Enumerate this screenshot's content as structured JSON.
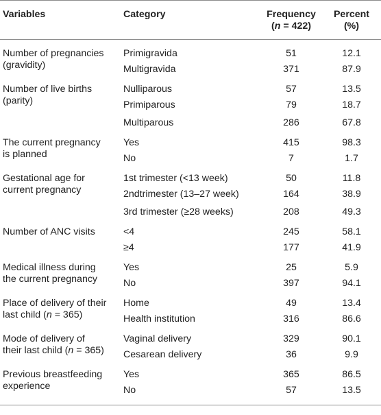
{
  "header": {
    "variables": "Variables",
    "category": "Category",
    "frequency_line1": "Frequency",
    "frequency_open": "(",
    "frequency_n": "n",
    "frequency_rest": " = 422)",
    "percent_line1": "Percent",
    "percent_line2": "(%)"
  },
  "groups": [
    {
      "variable_line1": "Number of pregnancies",
      "variable_line2": "(gravidity)",
      "rows": [
        {
          "category": "Primigravida",
          "frequency": "51",
          "percent": "12.1"
        },
        {
          "category": "Multigravida",
          "frequency": "371",
          "percent": "87.9"
        }
      ]
    },
    {
      "variable_line1": "Number of live births",
      "variable_line2": "(parity)",
      "rows": [
        {
          "category": "Nulliparous",
          "frequency": "57",
          "percent": "13.5"
        },
        {
          "category": "Primiparous",
          "frequency": "79",
          "percent": "18.7"
        },
        {
          "category": "Multiparous",
          "frequency": "286",
          "percent": "67.8"
        }
      ]
    },
    {
      "variable_line1": "The current pregnancy",
      "variable_line2": "is planned",
      "rows": [
        {
          "category": "Yes",
          "frequency": "415",
          "percent": "98.3"
        },
        {
          "category": "No",
          "frequency": "7",
          "percent": "1.7"
        }
      ]
    },
    {
      "variable_line1": "Gestational age for",
      "variable_line2": "current pregnancy",
      "rows": [
        {
          "category": "1st trimester (<13 week)",
          "frequency": "50",
          "percent": "11.8"
        },
        {
          "category": "2ndtrimester (13–27 week)",
          "frequency": "164",
          "percent": "38.9"
        },
        {
          "category": "3rd trimester (≥28 weeks)",
          "frequency": "208",
          "percent": "49.3"
        }
      ]
    },
    {
      "variable_line1": "Number of ANC visits",
      "variable_line2": "",
      "rows": [
        {
          "category": "<4",
          "frequency": "245",
          "percent": "58.1"
        },
        {
          "category": "≥4",
          "frequency": "177",
          "percent": "41.9"
        }
      ]
    },
    {
      "variable_line1": "Medical illness during",
      "variable_line2": "the current pregnancy",
      "rows": [
        {
          "category": "Yes",
          "frequency": "25",
          "percent": "5.9"
        },
        {
          "category": "No",
          "frequency": "397",
          "percent": "94.1"
        }
      ]
    },
    {
      "variable_line1": "Place of delivery of their",
      "variable_line2_pre": "last child (",
      "variable_line2_n": "n",
      "variable_line2_post": " = 365)",
      "rows": [
        {
          "category": "Home",
          "frequency": "49",
          "percent": "13.4"
        },
        {
          "category": "Health institution",
          "frequency": "316",
          "percent": "86.6"
        }
      ]
    },
    {
      "variable_line1": "Mode of delivery of",
      "variable_line2_pre": "their last child (",
      "variable_line2_n": "n",
      "variable_line2_post": " = 365)",
      "rows": [
        {
          "category": "Vaginal delivery",
          "frequency": "329",
          "percent": "90.1"
        },
        {
          "category": "Cesarean delivery",
          "frequency": "36",
          "percent": "9.9"
        }
      ]
    },
    {
      "variable_line1": "Previous breastfeeding",
      "variable_line2": "experience",
      "rows": [
        {
          "category": "Yes",
          "frequency": "365",
          "percent": "86.5"
        },
        {
          "category": "No",
          "frequency": "57",
          "percent": "13.5"
        }
      ]
    }
  ]
}
